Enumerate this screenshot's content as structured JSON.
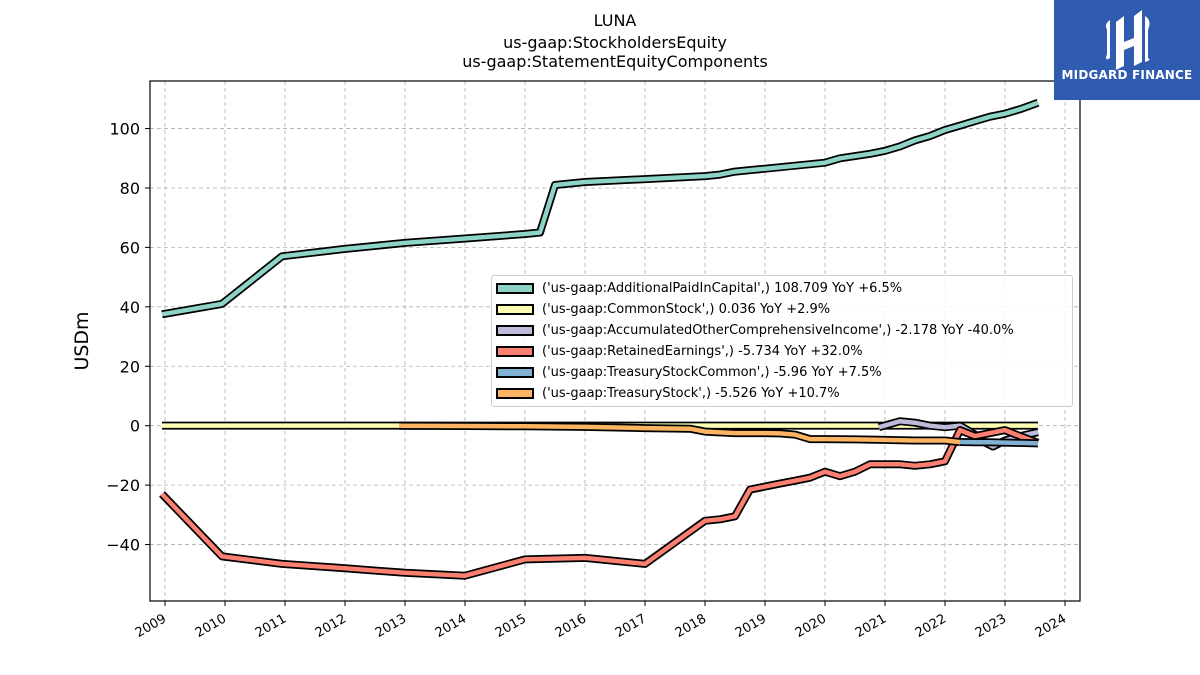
{
  "title_lines": [
    "LUNA",
    "us-gaap:StockholdersEquity",
    "us-gaap:StatementEquityComponents"
  ],
  "logo": {
    "text": "MIDGARD FINANCE",
    "background": "#2f5bb0"
  },
  "chart_data": {
    "type": "line",
    "ylabel": "USDm",
    "xlabel": "",
    "xlim": [
      2008.75,
      2024.25
    ],
    "ylim": [
      -59,
      116
    ],
    "x_ticks": [
      "2009",
      "2010",
      "2011",
      "2012",
      "2013",
      "2014",
      "2015",
      "2016",
      "2017",
      "2018",
      "2019",
      "2020",
      "2021",
      "2022",
      "2023",
      "2024"
    ],
    "y_ticks": [
      -40,
      -20,
      0,
      20,
      40,
      60,
      80,
      100
    ],
    "grid": true,
    "legend_position": "center-right",
    "series": [
      {
        "name": "('us-gaap:AdditionalPaidInCapital',) 108.709 YoY +6.5%",
        "color": "#8dd3c7",
        "x": [
          2008.95,
          2009.95,
          2010.95,
          2012.0,
          2013.0,
          2014.0,
          2015.0,
          2015.25,
          2015.5,
          2016.0,
          2017.0,
          2017.5,
          2018.0,
          2018.25,
          2018.5,
          2018.75,
          2019.0,
          2019.5,
          2020.0,
          2020.25,
          2020.75,
          2021.0,
          2021.25,
          2021.5,
          2021.75,
          2022.0,
          2022.25,
          2022.5,
          2022.75,
          2023.0,
          2023.25,
          2023.55
        ],
        "y": [
          37.5,
          41.0,
          57.0,
          59.5,
          61.5,
          63.0,
          64.5,
          65.0,
          81.0,
          82.0,
          83.0,
          83.5,
          84.0,
          84.5,
          85.5,
          86.0,
          86.5,
          87.5,
          88.5,
          90.0,
          91.5,
          92.5,
          94.0,
          96.0,
          97.5,
          99.5,
          101.0,
          102.5,
          104.0,
          105.0,
          106.5,
          108.709
        ]
      },
      {
        "name": "('us-gaap:CommonStock',) 0.036 YoY +2.9%",
        "color": "#ffffb3",
        "x": [
          2008.95,
          2012.9,
          2016.0,
          2020.0,
          2023.55
        ],
        "y": [
          0.034,
          0.035,
          0.035,
          0.035,
          0.036
        ]
      },
      {
        "name": "('us-gaap:AccumulatedOtherComprehensiveIncome',) -2.178 YoY -40.0%",
        "color": "#bebada",
        "x": [
          2020.9,
          2021.25,
          2021.5,
          2021.75,
          2022.0,
          2022.25,
          2022.5,
          2022.65,
          2022.8,
          2023.0,
          2023.25,
          2023.55
        ],
        "y": [
          -0.5,
          1.5,
          1.0,
          0.0,
          -0.5,
          0.0,
          -3.0,
          -5.5,
          -7.0,
          -5.0,
          -3.5,
          -2.178
        ]
      },
      {
        "name": "('us-gaap:RetainedEarnings',) -5.734 YoY +32.0%",
        "color": "#fb8072",
        "x": [
          2008.95,
          2009.95,
          2010.95,
          2012.0,
          2013.0,
          2014.0,
          2015.0,
          2016.0,
          2017.0,
          2018.0,
          2018.25,
          2018.5,
          2018.75,
          2019.0,
          2019.25,
          2019.5,
          2019.75,
          2020.0,
          2020.25,
          2020.5,
          2020.75,
          2021.0,
          2021.25,
          2021.5,
          2021.75,
          2022.0,
          2022.25,
          2022.5,
          2022.75,
          2023.0,
          2023.25,
          2023.55
        ],
        "y": [
          -23.0,
          -44.0,
          -46.5,
          -48.0,
          -49.5,
          -50.5,
          -45.0,
          -44.5,
          -46.5,
          -32.0,
          -31.5,
          -30.5,
          -21.5,
          -20.5,
          -19.5,
          -18.5,
          -17.5,
          -15.5,
          -17.0,
          -15.5,
          -13.0,
          -13.0,
          -13.0,
          -13.5,
          -13.0,
          -12.0,
          -1.5,
          -3.5,
          -2.5,
          -1.5,
          -3.5,
          -5.734
        ]
      },
      {
        "name": "('us-gaap:TreasuryStockCommon',) -5.96 YoY +7.5%",
        "color": "#80b1d3",
        "x": [
          2022.25,
          2022.5,
          2022.75,
          2023.0,
          2023.25,
          2023.55
        ],
        "y": [
          -5.5,
          -5.6,
          -5.6,
          -5.7,
          -5.8,
          -5.96
        ]
      },
      {
        "name": "('us-gaap:TreasuryStock',) -5.526 YoY +10.7%",
        "color": "#fdb462",
        "x": [
          2012.9,
          2014.0,
          2015.0,
          2016.0,
          2017.0,
          2017.75,
          2018.0,
          2018.5,
          2019.0,
          2019.25,
          2019.5,
          2019.75,
          2020.0,
          2020.5,
          2021.0,
          2021.5,
          2022.0,
          2022.25
        ],
        "y": [
          0.0,
          -0.1,
          -0.2,
          -0.4,
          -0.8,
          -1.0,
          -2.0,
          -2.5,
          -2.5,
          -2.6,
          -3.0,
          -4.5,
          -4.5,
          -4.6,
          -4.8,
          -5.0,
          -5.0,
          -5.526
        ]
      }
    ]
  }
}
